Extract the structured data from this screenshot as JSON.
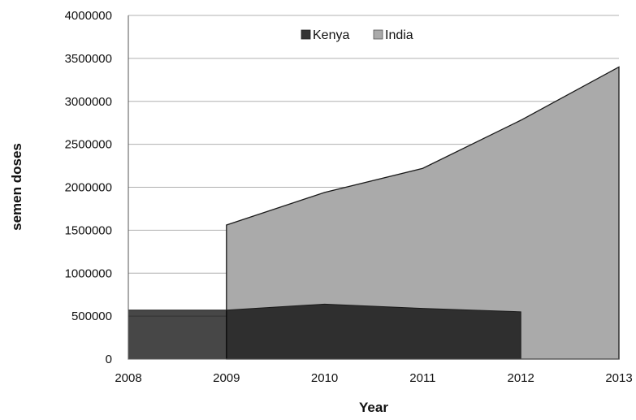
{
  "chart_data": {
    "type": "area",
    "title": "",
    "xlabel": "Year",
    "ylabel": "semen doses",
    "xlim": [
      2008,
      2013
    ],
    "ylim": [
      0,
      4000000
    ],
    "x_ticks": [
      "2008",
      "2009",
      "2010",
      "2011",
      "2012",
      "2013"
    ],
    "y_ticks": [
      "0",
      "500000",
      "1000000",
      "1500000",
      "2000000",
      "2500000",
      "3000000",
      "3500000",
      "4000000"
    ],
    "grid": true,
    "legend_position": "top-center",
    "series": [
      {
        "name": "India",
        "color": "#aaaaaa",
        "x": [
          2009,
          2010,
          2011,
          2012,
          2013
        ],
        "values": [
          1560000,
          1940000,
          2220000,
          2780000,
          3400000
        ]
      },
      {
        "name": "Kenya",
        "color": "#333333",
        "x": [
          2008,
          2009,
          2010,
          2011,
          2012
        ],
        "values": [
          570000,
          570000,
          640000,
          590000,
          550000
        ]
      }
    ]
  }
}
